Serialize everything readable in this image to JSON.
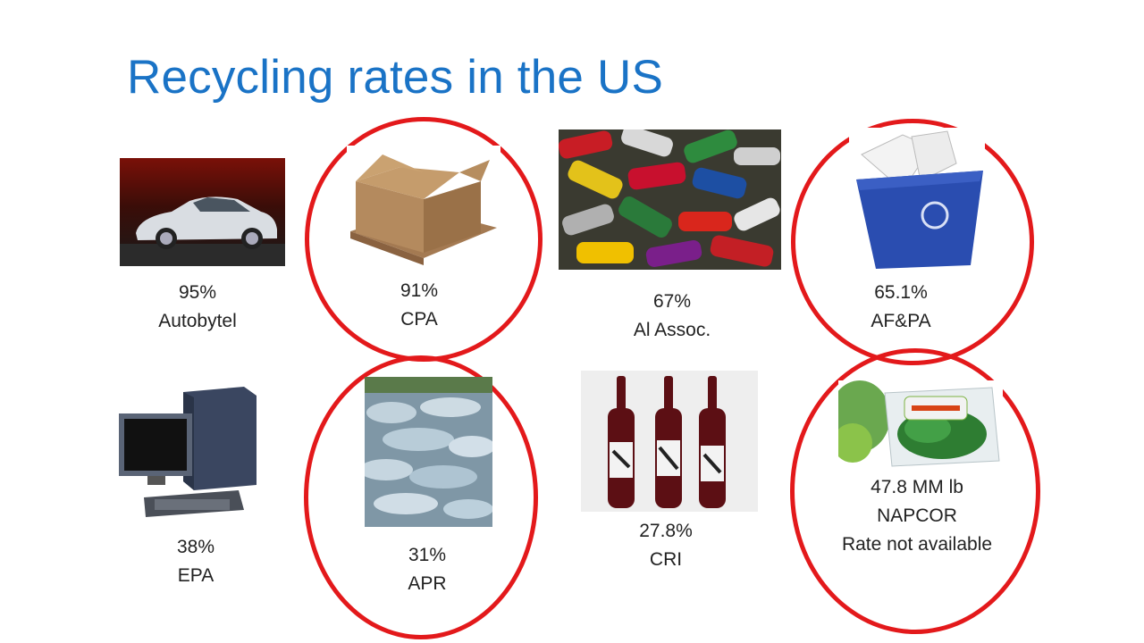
{
  "title": "Recycling rates in the US",
  "items": [
    {
      "key": "car",
      "rate": "95%",
      "source": "Autobytel",
      "circled": false
    },
    {
      "key": "cardboard",
      "rate": "91%",
      "source": "CPA",
      "circled": true
    },
    {
      "key": "cans",
      "rate": "67%",
      "source": "Al Assoc.",
      "circled": false
    },
    {
      "key": "paper",
      "rate": "65.1%",
      "source": "AF&PA",
      "circled": true
    },
    {
      "key": "computer",
      "rate": "38%",
      "source": "EPA",
      "circled": false
    },
    {
      "key": "bottles",
      "rate": "31%",
      "source": "APR",
      "circled": true
    },
    {
      "key": "wine",
      "rate": "27.8%",
      "source": "CRI",
      "circled": false
    },
    {
      "key": "clamshell",
      "rate": "47.8 MM lb",
      "source": "NAPCOR",
      "note": "Rate not available",
      "circled": true
    }
  ],
  "colors": {
    "title": "#1a73c6",
    "circle": "#e3191b"
  }
}
